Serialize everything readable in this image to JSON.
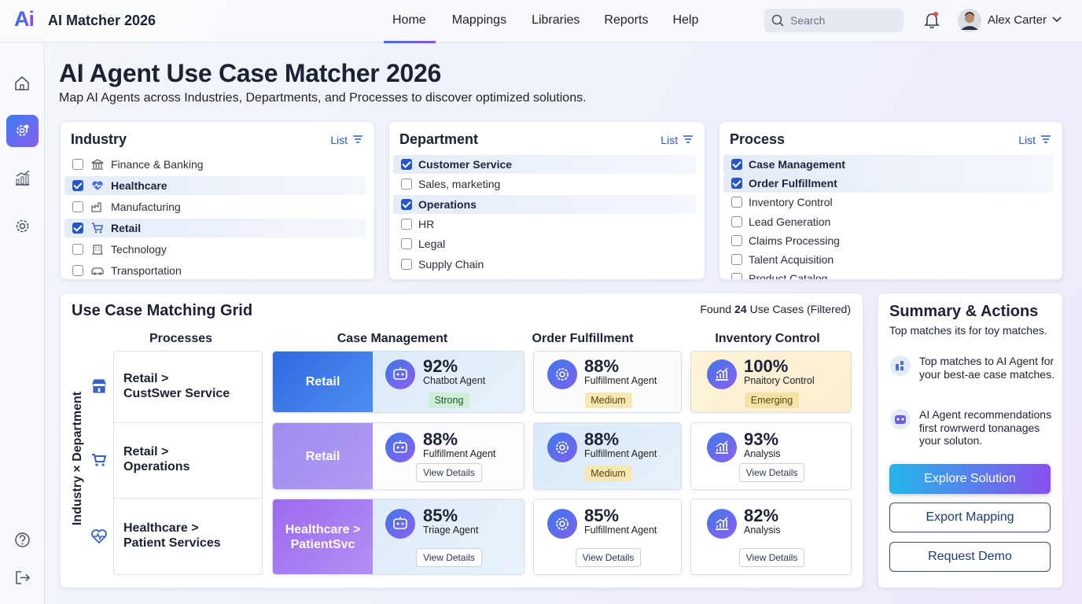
{
  "header": {
    "logo": "Ai",
    "app_name": "AI Matcher 2026",
    "nav": [
      "Home",
      "Mappings",
      "Libraries",
      "Reports",
      "Help"
    ],
    "search_placeholder": "Search",
    "user": "Alex Carter"
  },
  "page": {
    "title": "AI Agent Use Case Matcher 2026",
    "subtitle": "Map AI Agents across Industries, Departments, and Processes to discover optimized solutions."
  },
  "filters": [
    {
      "title": "Industry",
      "view": "List",
      "options": [
        {
          "label": "Finance & Banking",
          "checked": false
        },
        {
          "label": "Healthcare",
          "checked": true
        },
        {
          "label": "Manufacturing",
          "checked": false
        },
        {
          "label": "Retail",
          "checked": true
        },
        {
          "label": "Technology",
          "checked": false
        },
        {
          "label": "Transportation",
          "checked": false
        }
      ]
    },
    {
      "title": "Department",
      "view": "List",
      "options": [
        {
          "label": "Customer Service",
          "checked": true
        },
        {
          "label": "Sales, marketing",
          "checked": false
        },
        {
          "label": "Operations",
          "checked": true
        },
        {
          "label": "HR",
          "checked": false
        },
        {
          "label": "Legal",
          "checked": false
        },
        {
          "label": "Supply Chain",
          "checked": false
        }
      ]
    },
    {
      "title": "Process",
      "view": "List",
      "options": [
        {
          "label": "Case Management",
          "checked": true
        },
        {
          "label": "Order Fulfillment",
          "checked": true
        },
        {
          "label": "Inventory Control",
          "checked": false
        },
        {
          "label": "Lead Generation",
          "checked": false
        },
        {
          "label": "Claims Processing",
          "checked": false
        },
        {
          "label": "Talent Acquisition",
          "checked": false
        },
        {
          "label": "Product Catalog",
          "checked": false
        }
      ]
    }
  ],
  "grid": {
    "title": "Use Case Matching Grid",
    "found_prefix": "Found",
    "found_count": "24",
    "found_suffix": "Use Cases (Filtered)",
    "processes_header": "Processes",
    "axis_label": "Industry × Department",
    "columns": [
      "Case Management",
      "Order Fulfillment",
      "Inventory Control"
    ],
    "rows": [
      {
        "label": [
          "Retail >",
          "CustSwer Service"
        ],
        "tag": "Retail",
        "cells": [
          {
            "score": "92%",
            "agent": "Chatbot Agent",
            "badge": "Strong"
          },
          {
            "score": "88%",
            "agent": "Fulfillment Agent",
            "badge": "Medium"
          },
          {
            "score": "100%",
            "agent": "Pnaitory Control",
            "badge": "Emerging"
          }
        ]
      },
      {
        "label": [
          "Retail >",
          "Operations"
        ],
        "tag": "Retail",
        "cells": [
          {
            "score": "88%",
            "agent": "Fulfillment Agent",
            "action": "View Details"
          },
          {
            "score": "88%",
            "agent": "Fulfillment Agent",
            "badge": "Medium"
          },
          {
            "score": "93%",
            "agent": "Analysis",
            "action": "View Details"
          }
        ]
      },
      {
        "label": [
          "Healthcare >",
          "Patient Services"
        ],
        "tag": "Healthcare > PatientSvc",
        "cells": [
          {
            "score": "85%",
            "agent": "Triage Agent",
            "action": "View Details"
          },
          {
            "score": "85%",
            "agent": "Fulfillment Agent",
            "action": "View Details"
          },
          {
            "score": "82%",
            "agent": "Analysis",
            "action": "View Details"
          }
        ]
      }
    ]
  },
  "summary": {
    "title": "Summary & Actions",
    "subtitle": "Top matches its for toy matches.",
    "items": [
      "Top matches to AI Agent for your best-ae case matches.",
      "AI Agent recommendations first rowrwerd tonanages your soluton."
    ],
    "buttons": [
      "Explore Solution",
      "Export Mapping",
      "Request Demo"
    ]
  }
}
